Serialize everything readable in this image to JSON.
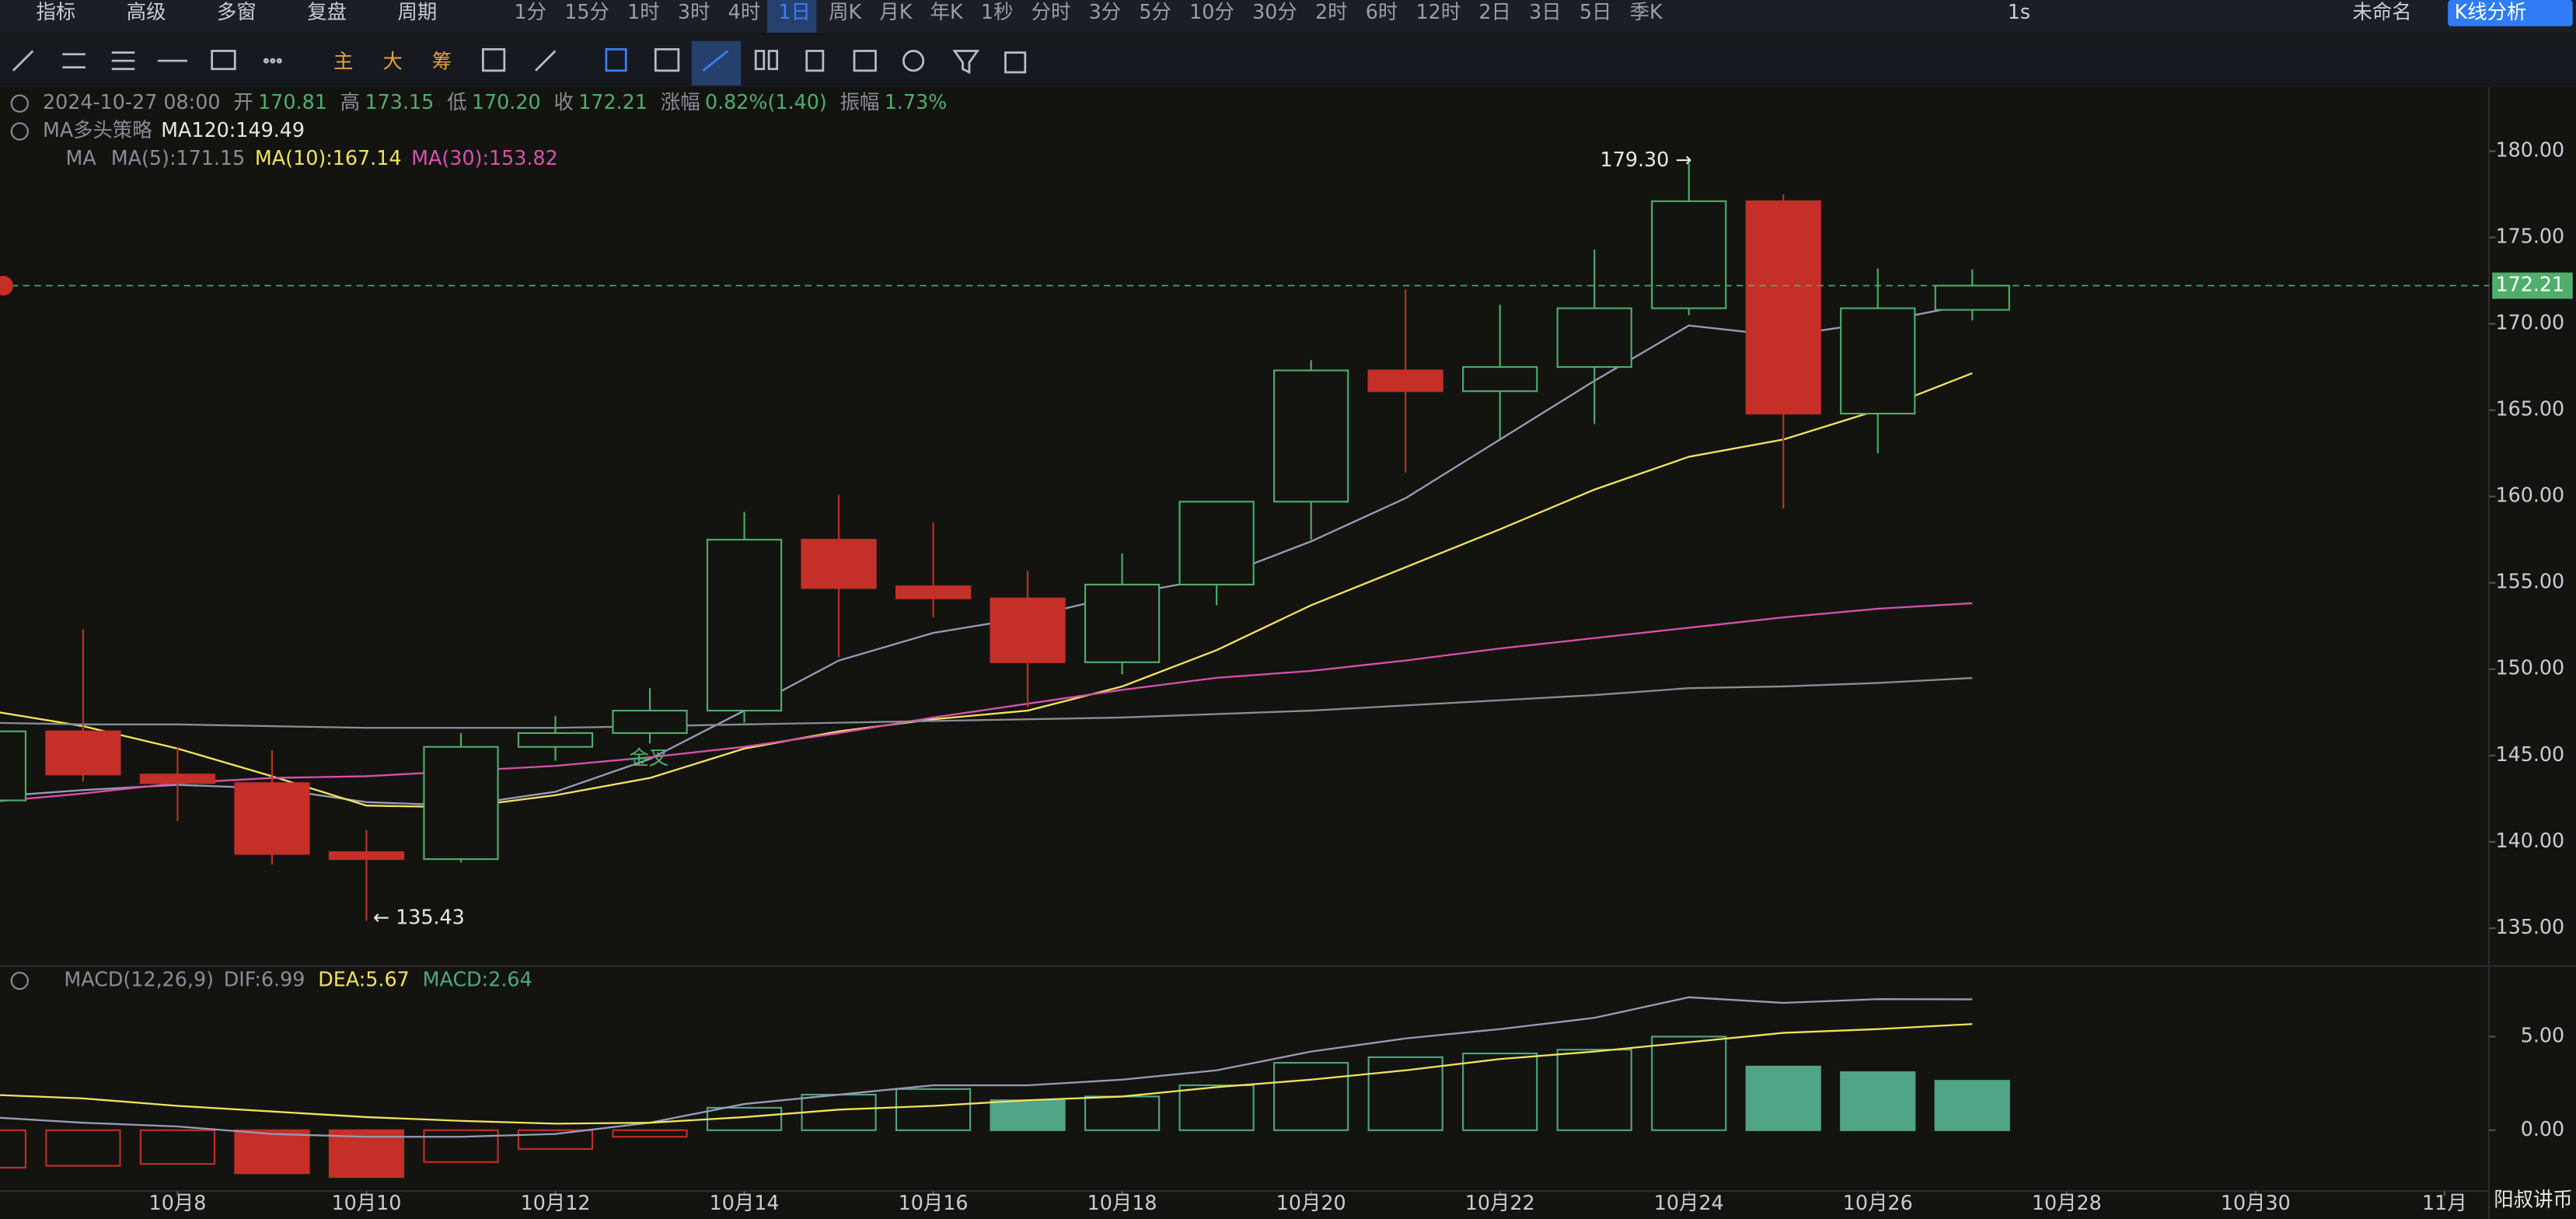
{
  "toolbar": {
    "menus": [
      "指标",
      "高级",
      "多窗",
      "复盘",
      "周期"
    ],
    "periods": [
      "1分",
      "15分",
      "1时",
      "3时",
      "4时",
      "1日",
      "周K",
      "月K",
      "年K",
      "1秒",
      "分时",
      "3分",
      "5分",
      "10分",
      "30分",
      "2时",
      "6时",
      "12时",
      "2日",
      "3日",
      "5日",
      "季K"
    ],
    "right": [
      "1s",
      "未命名",
      "K线分析"
    ],
    "tools": [
      "主",
      "大",
      "筹"
    ]
  },
  "info": {
    "row1": [
      "2024-10-27 08:00",
      "开",
      "170.81",
      "高",
      "173.15",
      "低",
      "170.20",
      "收",
      "172.21",
      "涨幅",
      "0.82%(1.40)",
      "振幅",
      "1.73%"
    ]
  },
  "watermark": "阳叔讲币",
  "chart_data": [
    {
      "type": "candlestick",
      "strategy": "MA多头策略",
      "indicator": "MA",
      "x": [
        6,
        7,
        8,
        9,
        10,
        11,
        12,
        13,
        14,
        15,
        16,
        17,
        18,
        19,
        20,
        21,
        22,
        23,
        24,
        25,
        26,
        27
      ],
      "open": [
        142.4,
        146.4,
        143.9,
        143.4,
        139.4,
        139.0,
        145.5,
        146.3,
        147.6,
        157.5,
        154.8,
        154.1,
        150.4,
        154.9,
        159.7,
        167.3,
        166.1,
        167.5,
        170.9,
        177.1,
        164.8,
        170.81
      ],
      "high": [
        146.8,
        152.3,
        145.5,
        145.3,
        140.7,
        146.3,
        147.3,
        148.9,
        159.1,
        160.1,
        158.5,
        155.7,
        156.7,
        159.7,
        167.9,
        172.0,
        171.1,
        174.3,
        179.3,
        177.5,
        173.2,
        173.15
      ],
      "low": [
        141.8,
        143.5,
        141.2,
        138.7,
        135.43,
        138.8,
        144.7,
        145.7,
        146.9,
        150.7,
        153.0,
        147.8,
        149.7,
        153.7,
        157.5,
        161.4,
        163.3,
        164.2,
        170.5,
        159.3,
        162.5,
        170.2
      ],
      "close": [
        146.4,
        143.9,
        143.4,
        139.3,
        139.0,
        145.5,
        146.3,
        147.6,
        157.5,
        154.7,
        154.1,
        150.4,
        154.9,
        159.7,
        167.3,
        166.1,
        167.5,
        170.9,
        177.1,
        164.8,
        170.9,
        172.21
      ],
      "up_color": "#4fae6c",
      "down_color": "#c42f28",
      "series": [
        {
          "name": "MA(5):171.15",
          "color": "#9a9ab8",
          "values": [
            142.6,
            143.0,
            143.3,
            143.1,
            142.3,
            142.1,
            142.9,
            144.8,
            147.6,
            150.5,
            152.1,
            153.0,
            154.3,
            155.3,
            157.4,
            159.9,
            163.3,
            166.7,
            169.9,
            169.3,
            170.1,
            171.15
          ]
        },
        {
          "name": "MA(10):167.14",
          "color": "#f2e35a",
          "values": [
            147.6,
            146.7,
            145.4,
            143.8,
            142.1,
            142.0,
            142.7,
            143.7,
            145.4,
            146.4,
            147.1,
            147.6,
            149.0,
            151.1,
            153.7,
            155.9,
            158.1,
            160.4,
            162.3,
            163.3,
            165.0,
            167.14
          ]
        },
        {
          "name": "MA(30):153.82",
          "color": "#d94fb0",
          "values": [
            142.3,
            142.8,
            143.4,
            143.7,
            143.8,
            144.1,
            144.4,
            144.9,
            145.5,
            146.3,
            147.2,
            148.0,
            148.8,
            149.5,
            149.9,
            150.5,
            151.2,
            151.8,
            152.4,
            153.0,
            153.5,
            153.82
          ]
        },
        {
          "name": "MA120:149.49",
          "color": "#8a8d98",
          "values": [
            146.9,
            146.8,
            146.8,
            146.7,
            146.6,
            146.6,
            146.6,
            146.7,
            146.8,
            146.9,
            147.0,
            147.1,
            147.2,
            147.4,
            147.6,
            147.9,
            148.2,
            148.5,
            148.9,
            149.0,
            149.2,
            149.49
          ]
        }
      ],
      "xlim": [
        6.12,
        32.47
      ],
      "ylim": [
        132.81,
        183.52
      ],
      "yticks": [
        {
          "value": 135,
          "label": "135.00"
        },
        {
          "value": 140,
          "label": "140.00"
        },
        {
          "value": 145,
          "label": "145.00"
        },
        {
          "value": 150,
          "label": "150.00"
        },
        {
          "value": 155,
          "label": "155.00"
        },
        {
          "value": 160,
          "label": "160.00"
        },
        {
          "value": 165,
          "label": "165.00"
        },
        {
          "value": 170,
          "label": "170.00"
        },
        {
          "value": 175,
          "label": "175.00"
        },
        {
          "value": 180,
          "label": "180.00"
        }
      ],
      "annotations": [
        "179.30 →",
        "← 135.43",
        "金叉"
      ]
    },
    {
      "type": "macd",
      "title": "MACD(12,26,9)",
      "name": "MACD:2.64",
      "x": [
        6,
        7,
        8,
        9,
        10,
        11,
        12,
        13,
        14,
        15,
        16,
        17,
        18,
        19,
        20,
        21,
        22,
        23,
        24,
        25,
        26,
        27
      ],
      "values": [
        -2.0,
        -1.9,
        -1.8,
        -2.3,
        -2.5,
        -1.7,
        -1.0,
        -0.35,
        1.2,
        1.9,
        2.2,
        1.6,
        1.8,
        2.4,
        3.6,
        3.9,
        4.1,
        4.3,
        5.0,
        3.4,
        3.1,
        2.64
      ],
      "up_color": "#4fa585",
      "down_color": "#c42f28",
      "series": [
        {
          "name": "DIF:6.99",
          "color": "#9a9ab8",
          "values": [
            0.7,
            0.4,
            0.2,
            -0.2,
            -0.35,
            -0.35,
            -0.2,
            0.4,
            1.4,
            1.9,
            2.4,
            2.4,
            2.7,
            3.2,
            4.2,
            4.9,
            5.4,
            6.0,
            7.1,
            6.8,
            7.0,
            6.99
          ]
        },
        {
          "name": "DEA:5.67",
          "color": "#f2e35a",
          "values": [
            1.9,
            1.7,
            1.3,
            1.0,
            0.7,
            0.5,
            0.35,
            0.4,
            0.7,
            1.1,
            1.3,
            1.6,
            1.8,
            2.3,
            2.7,
            3.2,
            3.8,
            4.2,
            4.7,
            5.2,
            5.4,
            5.67
          ]
        }
      ],
      "xlim": [
        6.12,
        32.47
      ],
      "ylim": [
        -3.25,
        8.77
      ],
      "yticks": [
        {
          "value": 0,
          "label": "0.00"
        },
        {
          "value": 5,
          "label": "5.00"
        }
      ],
      "xticks": [
        {
          "value": 8,
          "label": "10月8"
        },
        {
          "value": 10,
          "label": "10月10"
        },
        {
          "value": 12,
          "label": "10月12"
        },
        {
          "value": 14,
          "label": "10月14"
        },
        {
          "value": 16,
          "label": "10月16"
        },
        {
          "value": 18,
          "label": "10月18"
        },
        {
          "value": 20,
          "label": "10月20"
        },
        {
          "value": 22,
          "label": "10月22"
        },
        {
          "value": 24,
          "label": "10月24"
        },
        {
          "value": 26,
          "label": "10月26"
        },
        {
          "value": 28,
          "label": "10月28"
        },
        {
          "value": 30,
          "label": "10月30"
        },
        {
          "value": 32,
          "label": "11月"
        }
      ]
    }
  ]
}
